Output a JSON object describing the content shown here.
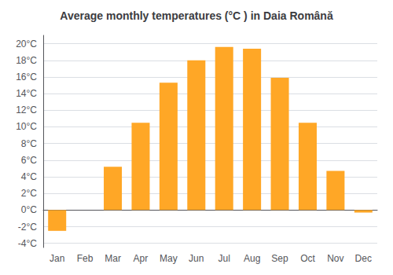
{
  "chart_data": {
    "type": "bar",
    "title": "Average monthly temperatures (°C ) in Daia Română",
    "categories": [
      "Jan",
      "Feb",
      "Mar",
      "Apr",
      "May",
      "Jun",
      "Jul",
      "Aug",
      "Sep",
      "Oct",
      "Nov",
      "Dec"
    ],
    "values": [
      -2.5,
      0,
      5.2,
      10.5,
      15.3,
      18.0,
      19.6,
      19.4,
      15.9,
      10.5,
      4.7,
      -0.3
    ],
    "color": "#FFA726",
    "ylim": [
      -4.5,
      21
    ],
    "yticks": [
      {
        "value": -4,
        "label": "-4°C"
      },
      {
        "value": -2,
        "label": "-2°C"
      },
      {
        "value": 0,
        "label": "0°C"
      },
      {
        "value": 2,
        "label": "2°C"
      },
      {
        "value": 4,
        "label": "4°C"
      },
      {
        "value": 6,
        "label": "6°C"
      },
      {
        "value": 8,
        "label": "8°C"
      },
      {
        "value": 10,
        "label": "10°C"
      },
      {
        "value": 12,
        "label": "12°C"
      },
      {
        "value": 14,
        "label": "14°C"
      },
      {
        "value": 16,
        "label": "16°C"
      },
      {
        "value": 18,
        "label": "18°C"
      },
      {
        "value": 20,
        "label": "20°C"
      }
    ],
    "grid": true
  }
}
